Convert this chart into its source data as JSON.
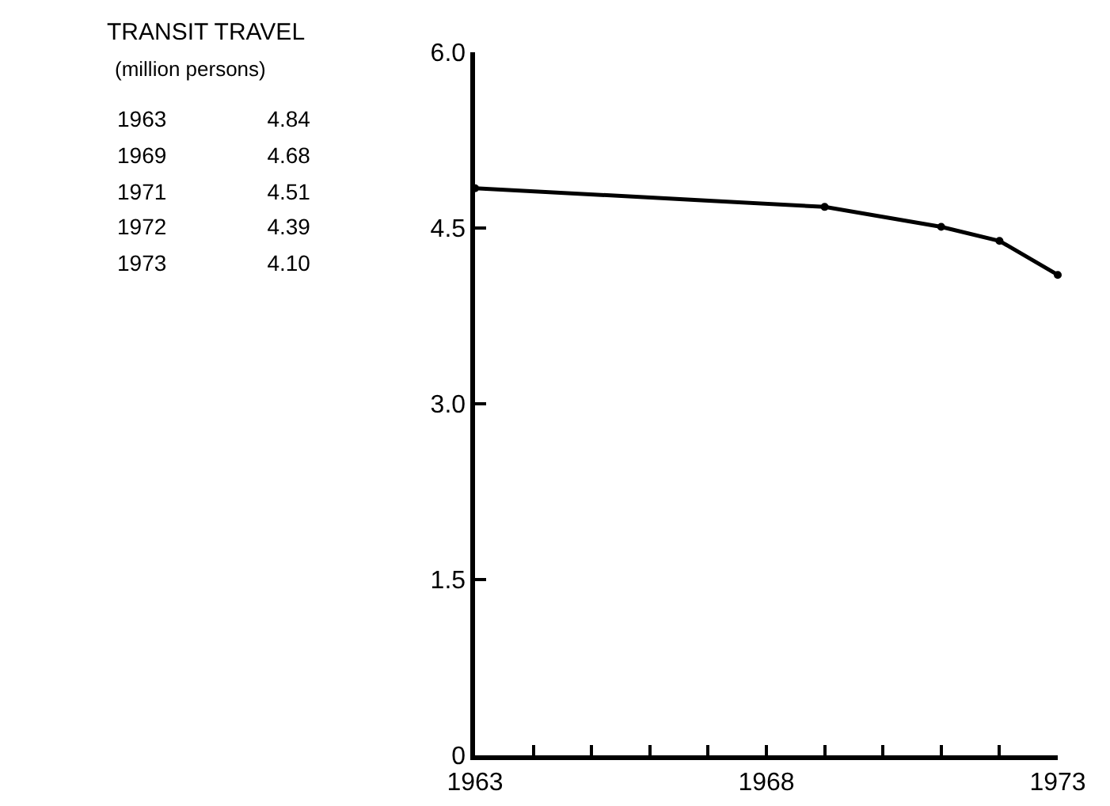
{
  "chart_data": [
    {
      "type": "other",
      "title": "TRANSIT TRAVEL",
      "subtitle": "(million persons)",
      "annotations": [
        "1963    4.84",
        "1969    4.68",
        "1971    4.51",
        "1972    4.39",
        "1973    4.10"
      ]
    },
    {
      "type": "line",
      "x": [
        1963,
        1969,
        1971,
        1972,
        1973
      ],
      "series": [
        {
          "color": "#000000",
          "values": [
            4.84,
            4.68,
            4.51,
            4.39,
            4.1
          ]
        }
      ],
      "xlim": [
        1963,
        1973
      ],
      "xticks": [
        1963,
        {
          "value": 1964,
          "label": null
        },
        {
          "value": 1965,
          "label": null
        },
        {
          "value": 1966,
          "label": null
        },
        {
          "value": 1967,
          "label": null
        },
        1968,
        {
          "value": 1969,
          "label": null
        },
        {
          "value": 1970,
          "label": null
        },
        {
          "value": 1971,
          "label": null
        },
        {
          "value": 1972,
          "label": null
        },
        1973
      ],
      "ylim": [
        0,
        6
      ],
      "yticks": [
        0,
        1.5,
        {
          "value": 3,
          "label": "3.0"
        },
        4.5,
        {
          "value": 6,
          "label": "6.0"
        }
      ],
      "marker": "circle",
      "line_style": "solid"
    }
  ]
}
